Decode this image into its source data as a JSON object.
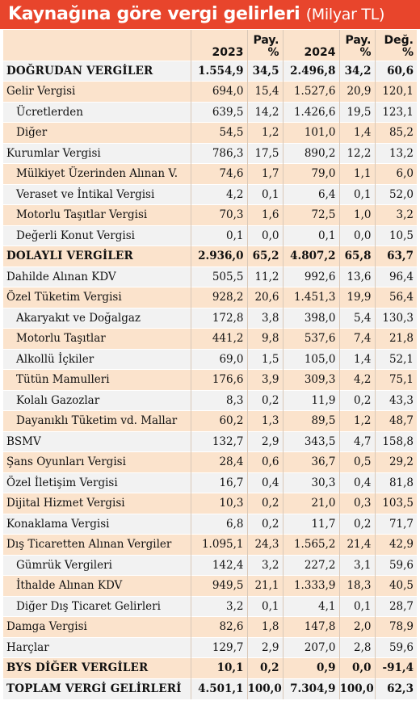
{
  "title": "Kaynağına göre vergi gelirleri",
  "unit": "(Milyar TL)",
  "headers": [
    "",
    "2023",
    "Pay.\n%",
    "2024",
    "Pay.\n%",
    "Değ.\n%"
  ],
  "rows": [
    {
      "label": "DOĞRUDAN VERGİLER",
      "level": 0,
      "bold": true,
      "values": [
        "1.554,9",
        "34,5",
        "2.496,8",
        "34,2",
        "60,6"
      ]
    },
    {
      "label": "Gelir Vergisi",
      "level": 0,
      "bold": false,
      "values": [
        "694,0",
        "15,4",
        "1.527,6",
        "20,9",
        "120,1"
      ]
    },
    {
      "label": "Ücretlerden",
      "level": 1,
      "bold": false,
      "values": [
        "639,5",
        "14,2",
        "1.426,6",
        "19,5",
        "123,1"
      ]
    },
    {
      "label": "Diğer",
      "level": 1,
      "bold": false,
      "values": [
        "54,5",
        "1,2",
        "101,0",
        "1,4",
        "85,2"
      ]
    },
    {
      "label": "Kurumlar Vergisi",
      "level": 0,
      "bold": false,
      "values": [
        "786,3",
        "17,5",
        "890,2",
        "12,2",
        "13,2"
      ]
    },
    {
      "label": "Mülkiyet Üzerinden Alınan V.",
      "level": 1,
      "bold": false,
      "values": [
        "74,6",
        "1,7",
        "79,0",
        "1,1",
        "6,0"
      ]
    },
    {
      "label": "Veraset ve İntikal Vergisi",
      "level": 1,
      "bold": false,
      "values": [
        "4,2",
        "0,1",
        "6,4",
        "0,1",
        "52,0"
      ]
    },
    {
      "label": "Motorlu Taşıtlar Vergisi",
      "level": 1,
      "bold": false,
      "values": [
        "70,3",
        "1,6",
        "72,5",
        "1,0",
        "3,2"
      ]
    },
    {
      "label": "Değerli Konut Vergisi",
      "level": 1,
      "bold": false,
      "values": [
        "0,1",
        "0,0",
        "0,1",
        "0,0",
        "10,5"
      ]
    },
    {
      "label": "DOLAYLI VERGİLER",
      "level": 0,
      "bold": true,
      "values": [
        "2.936,0",
        "65,2",
        "4.807,2",
        "65,8",
        "63,7"
      ]
    },
    {
      "label": "Dahilde Alınan KDV",
      "level": 0,
      "bold": false,
      "values": [
        "505,5",
        "11,2",
        "992,6",
        "13,6",
        "96,4"
      ]
    },
    {
      "label": "Özel Tüketim Vergisi",
      "level": 0,
      "bold": false,
      "values": [
        "928,2",
        "20,6",
        "1.451,3",
        "19,9",
        "56,4"
      ]
    },
    {
      "label": "Akaryakıt ve Doğalgaz",
      "level": 1,
      "bold": false,
      "values": [
        "172,8",
        "3,8",
        "398,0",
        "5,4",
        "130,3"
      ]
    },
    {
      "label": "Motorlu Taşıtlar",
      "level": 1,
      "bold": false,
      "values": [
        "441,2",
        "9,8",
        "537,6",
        "7,4",
        "21,8"
      ]
    },
    {
      "label": "Alkollü İçkiler",
      "level": 1,
      "bold": false,
      "values": [
        "69,0",
        "1,5",
        "105,0",
        "1,4",
        "52,1"
      ]
    },
    {
      "label": "Tütün Mamulleri",
      "level": 1,
      "bold": false,
      "values": [
        "176,6",
        "3,9",
        "309,3",
        "4,2",
        "75,1"
      ]
    },
    {
      "label": "Kolalı Gazozlar",
      "level": 1,
      "bold": false,
      "values": [
        "8,3",
        "0,2",
        "11,9",
        "0,2",
        "43,3"
      ]
    },
    {
      "label": "Dayanıklı Tüketim vd. Mallar",
      "level": 1,
      "bold": false,
      "values": [
        "60,2",
        "1,3",
        "89,5",
        "1,2",
        "48,7"
      ]
    },
    {
      "label": "BSMV",
      "level": 0,
      "bold": false,
      "values": [
        "132,7",
        "2,9",
        "343,5",
        "4,7",
        "158,8"
      ]
    },
    {
      "label": "Şans Oyunları Vergisi",
      "level": 0,
      "bold": false,
      "values": [
        "28,4",
        "0,6",
        "36,7",
        "0,5",
        "29,2"
      ]
    },
    {
      "label": "Özel İletişim Vergisi",
      "level": 0,
      "bold": false,
      "values": [
        "16,7",
        "0,4",
        "30,3",
        "0,4",
        "81,8"
      ]
    },
    {
      "label": "Dijital Hizmet Vergisi",
      "level": 0,
      "bold": false,
      "values": [
        "10,3",
        "0,2",
        "21,0",
        "0,3",
        "103,5"
      ]
    },
    {
      "label": "Konaklama Vergisi",
      "level": 0,
      "bold": false,
      "values": [
        "6,8",
        "0,2",
        "11,7",
        "0,2",
        "71,7"
      ]
    },
    {
      "label": "Dış Ticaretten Alınan Vergiler",
      "level": 0,
      "bold": false,
      "values": [
        "1.095,1",
        "24,3",
        "1.565,2",
        "21,4",
        "42,9"
      ]
    },
    {
      "label": "Gümrük Vergileri",
      "level": 1,
      "bold": false,
      "values": [
        "142,4",
        "3,2",
        "227,2",
        "3,1",
        "59,6"
      ]
    },
    {
      "label": "İthalde Alınan KDV",
      "level": 1,
      "bold": false,
      "values": [
        "949,5",
        "21,1",
        "1.333,9",
        "18,3",
        "40,5"
      ]
    },
    {
      "label": "Diğer Dış Ticaret Gelirleri",
      "level": 1,
      "bold": false,
      "values": [
        "3,2",
        "0,1",
        "4,1",
        "0,1",
        "28,7"
      ]
    },
    {
      "label": "Damga Vergisi",
      "level": 0,
      "bold": false,
      "values": [
        "82,6",
        "1,8",
        "147,8",
        "2,0",
        "78,9"
      ]
    },
    {
      "label": "Harçlar",
      "level": 0,
      "bold": false,
      "values": [
        "129,7",
        "2,9",
        "207,0",
        "2,8",
        "59,6"
      ]
    },
    {
      "label": "BYS DİĞER VERGİLER",
      "level": 0,
      "bold": true,
      "values": [
        "10,1",
        "0,2",
        "0,9",
        "0,0",
        "-91,4"
      ]
    },
    {
      "label": "TOPLAM VERGİ GELİRLERİ",
      "level": 0,
      "bold": true,
      "values": [
        "4.501,1",
        "100,0",
        "7.304,9",
        "100,0",
        "62,3"
      ]
    }
  ]
}
